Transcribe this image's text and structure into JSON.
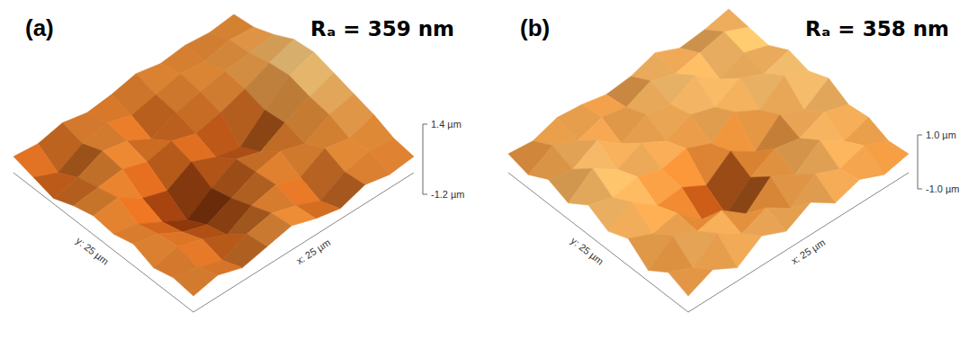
{
  "chart_data": [
    {
      "type": "surface",
      "title": "(a)",
      "annotations": [
        "Rₐ = 359 nm"
      ],
      "xlabel": "x: 25 µm",
      "ylabel": "y: 25 µm",
      "xlim": [
        0,
        25
      ],
      "ylim": [
        0,
        25
      ],
      "zlim": [
        -1.2,
        1.4
      ],
      "zticks": [
        {
          "value": 1.4,
          "label": "1.4 µm"
        },
        {
          "value": -1.2,
          "label": "-1.2 µm"
        }
      ],
      "values": [
        [
          0.2,
          0.4,
          0.1,
          0.3,
          0.5,
          0.2,
          0.0,
          0.3,
          0.1,
          0.2
        ],
        [
          0.3,
          0.1,
          -0.2,
          0.2,
          0.4,
          0.1,
          -0.3,
          0.2,
          0.4,
          0.3
        ],
        [
          0.1,
          0.3,
          0.0,
          -0.4,
          0.1,
          0.3,
          0.0,
          0.5,
          0.3,
          0.6
        ],
        [
          0.4,
          0.2,
          -0.3,
          -0.6,
          -0.2,
          0.2,
          0.4,
          0.1,
          0.6,
          0.8
        ],
        [
          0.2,
          0.0,
          -0.5,
          -1.0,
          -0.4,
          0.1,
          -0.2,
          0.3,
          0.7,
          1.0
        ],
        [
          0.3,
          0.4,
          -0.2,
          -0.5,
          0.0,
          -0.4,
          -0.6,
          0.2,
          0.9,
          1.2
        ],
        [
          0.1,
          0.2,
          0.3,
          0.0,
          0.2,
          -0.1,
          0.1,
          0.4,
          0.8,
          1.1
        ],
        [
          -0.2,
          0.0,
          0.4,
          0.2,
          -0.3,
          0.1,
          0.3,
          0.5,
          0.6,
          0.7
        ],
        [
          0.0,
          -0.4,
          0.1,
          0.3,
          0.0,
          0.2,
          0.4,
          0.3,
          0.5,
          0.4
        ],
        [
          0.2,
          0.1,
          0.3,
          0.1,
          0.2,
          0.4,
          0.2,
          0.3,
          0.2,
          0.3
        ]
      ]
    },
    {
      "type": "surface",
      "title": "(b)",
      "annotations": [
        "Rₐ = 358 nm"
      ],
      "xlabel": "x: 25 µm",
      "ylabel": "y: 25 µm",
      "xlim": [
        0,
        25
      ],
      "ylim": [
        0,
        25
      ],
      "zlim": [
        -1.0,
        1.0
      ],
      "zticks": [
        {
          "value": 1.0,
          "label": "1.0 µm"
        },
        {
          "value": -1.0,
          "label": "-1.0 µm"
        }
      ],
      "values": [
        [
          0.2,
          0.6,
          0.1,
          0.7,
          0.3,
          0.8,
          0.2,
          0.5,
          0.1,
          0.3
        ],
        [
          0.5,
          0.1,
          0.8,
          0.2,
          0.6,
          0.0,
          0.7,
          0.3,
          0.6,
          0.2
        ],
        [
          0.0,
          0.7,
          0.3,
          0.5,
          -0.2,
          0.6,
          0.1,
          0.8,
          0.2,
          0.5
        ],
        [
          0.6,
          0.2,
          0.4,
          -0.4,
          -0.8,
          0.0,
          0.5,
          0.3,
          0.7,
          0.4
        ],
        [
          0.3,
          0.8,
          0.1,
          0.2,
          -0.3,
          0.4,
          -0.2,
          0.6,
          0.2,
          0.8
        ],
        [
          0.7,
          0.4,
          0.6,
          0.3,
          0.5,
          0.1,
          0.7,
          0.2,
          0.9,
          0.5
        ],
        [
          0.2,
          0.9,
          0.3,
          0.7,
          0.2,
          0.6,
          0.3,
          0.8,
          0.4,
          0.7
        ],
        [
          0.5,
          0.3,
          0.8,
          0.1,
          0.6,
          0.4,
          0.9,
          0.2,
          0.6,
          0.3
        ],
        [
          0.1,
          0.6,
          0.2,
          0.5,
          0.3,
          0.7,
          0.4,
          0.6,
          0.8,
          0.4
        ],
        [
          0.3,
          0.2,
          0.5,
          0.4,
          0.2,
          0.3,
          0.6,
          0.2,
          0.3,
          0.5
        ]
      ]
    }
  ]
}
